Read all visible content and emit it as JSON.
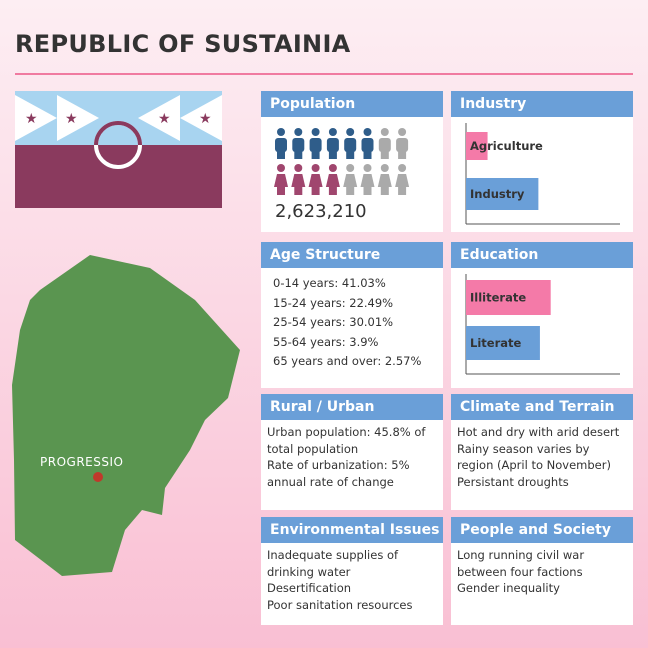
{
  "title": "REPUBLIC OF SUSTAINIA",
  "map": {
    "city": "PROGRESSIO"
  },
  "population": {
    "heading": "Population",
    "value": "2,623,210"
  },
  "industry": {
    "heading": "Industry",
    "type": "bar",
    "categories": [
      "Agriculture",
      "Industry"
    ],
    "values": [
      14,
      47
    ],
    "colors": [
      "#f47aa8",
      "#6a9fd8"
    ],
    "xlim": [
      0,
      100
    ]
  },
  "age_structure": {
    "heading": "Age Structure",
    "lines": [
      "0-14 years: 41.03%",
      "15-24 years: 22.49%",
      "25-54 years: 30.01%",
      "55-64 years: 3.9%",
      "65 years and over: 2.57%"
    ]
  },
  "education": {
    "heading": "Education",
    "type": "bar",
    "categories": [
      "Illiterate",
      "Literate"
    ],
    "values": [
      55,
      48
    ],
    "colors": [
      "#f47aa8",
      "#6a9fd8"
    ],
    "xlim": [
      0,
      100
    ]
  },
  "rural_urban": {
    "heading": "Rural / Urban",
    "lines": [
      "Urban population: 45.8% of total population",
      "Rate of urbanization: 5% annual rate of change"
    ]
  },
  "climate": {
    "heading": "Climate and Terrain",
    "lines": [
      "Hot and dry with arid desert",
      "Rainy season varies by region (April to November)",
      "Persistant droughts"
    ]
  },
  "environment": {
    "heading": "Environmental Issues",
    "lines": [
      "Inadequate supplies of drinking water",
      "Desertification",
      "Poor sanitation resources"
    ]
  },
  "people": {
    "heading": "People and Society",
    "lines": [
      "Long running civil war between four factions",
      "Gender inequality"
    ]
  }
}
